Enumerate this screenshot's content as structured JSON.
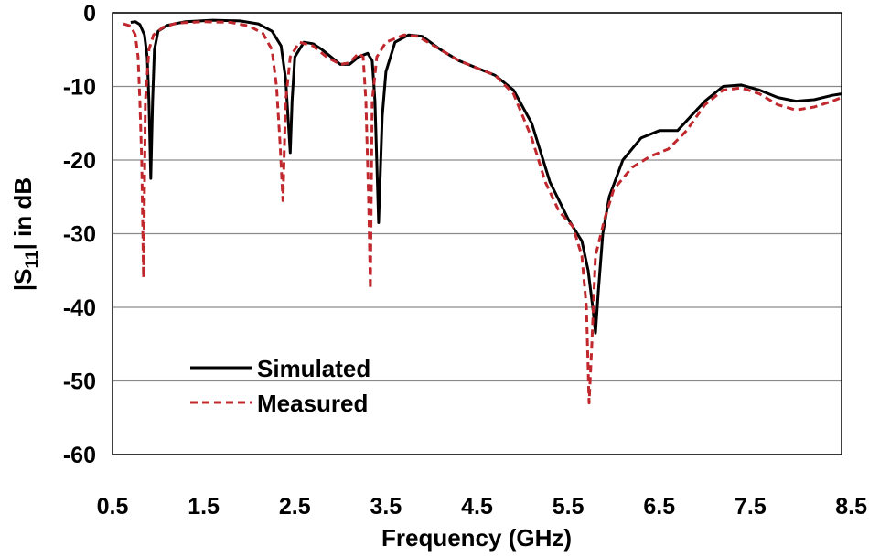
{
  "chart_data": {
    "type": "line",
    "title": "",
    "xlabel": "Frequency (GHz)",
    "ylabel_prefix": "|S",
    "ylabel_subscript": "11",
    "ylabel_suffix": "| in dB",
    "xlim": [
      0.5,
      8.5
    ],
    "ylim": [
      -60,
      0
    ],
    "xticks": [
      "0.5",
      "1.5",
      "2.5",
      "3.5",
      "4.5",
      "5.5",
      "6.5",
      "7.5",
      "8.5"
    ],
    "yticks": [
      "0",
      "-10",
      "-20",
      "-30",
      "-40",
      "-50",
      "-60"
    ],
    "grid": "horizontal",
    "legend_position": "bottom-left",
    "series": [
      {
        "name": "Simulated",
        "color": "#000000",
        "style": "solid",
        "points": [
          [
            0.7,
            -1.3
          ],
          [
            0.75,
            -1.2
          ],
          [
            0.8,
            -1.6
          ],
          [
            0.85,
            -3
          ],
          [
            0.88,
            -6
          ],
          [
            0.9,
            -12
          ],
          [
            0.92,
            -22.5
          ],
          [
            0.94,
            -12
          ],
          [
            0.96,
            -5
          ],
          [
            1.0,
            -2.5
          ],
          [
            1.1,
            -1.7
          ],
          [
            1.3,
            -1.2
          ],
          [
            1.6,
            -1.0
          ],
          [
            1.9,
            -1.1
          ],
          [
            2.1,
            -1.5
          ],
          [
            2.25,
            -2.5
          ],
          [
            2.35,
            -4.5
          ],
          [
            2.4,
            -9
          ],
          [
            2.43,
            -15
          ],
          [
            2.45,
            -19
          ],
          [
            2.47,
            -12
          ],
          [
            2.5,
            -6
          ],
          [
            2.6,
            -4
          ],
          [
            2.7,
            -4.2
          ],
          [
            2.8,
            -5
          ],
          [
            3.0,
            -7
          ],
          [
            3.1,
            -7
          ],
          [
            3.2,
            -6
          ],
          [
            3.3,
            -5.5
          ],
          [
            3.35,
            -6.5
          ],
          [
            3.38,
            -12
          ],
          [
            3.42,
            -28.5
          ],
          [
            3.46,
            -14
          ],
          [
            3.5,
            -8
          ],
          [
            3.6,
            -4
          ],
          [
            3.75,
            -3
          ],
          [
            3.9,
            -3.2
          ],
          [
            4.1,
            -5
          ],
          [
            4.3,
            -6.5
          ],
          [
            4.5,
            -7.5
          ],
          [
            4.7,
            -8.5
          ],
          [
            4.9,
            -10.5
          ],
          [
            5.1,
            -15
          ],
          [
            5.3,
            -23
          ],
          [
            5.5,
            -28
          ],
          [
            5.65,
            -31
          ],
          [
            5.72,
            -35
          ],
          [
            5.77,
            -40
          ],
          [
            5.8,
            -43.5
          ],
          [
            5.83,
            -38
          ],
          [
            5.88,
            -30
          ],
          [
            5.95,
            -25
          ],
          [
            6.1,
            -20
          ],
          [
            6.3,
            -17
          ],
          [
            6.5,
            -16
          ],
          [
            6.7,
            -16
          ],
          [
            6.85,
            -14
          ],
          [
            7.0,
            -12
          ],
          [
            7.2,
            -10
          ],
          [
            7.4,
            -9.8
          ],
          [
            7.6,
            -10.5
          ],
          [
            7.8,
            -11.5
          ],
          [
            8.0,
            -12
          ],
          [
            8.2,
            -11.8
          ],
          [
            8.4,
            -11.2
          ],
          [
            8.5,
            -11
          ]
        ]
      },
      {
        "name": "Measured",
        "color": "#c0282d",
        "style": "dashed",
        "points": [
          [
            0.62,
            -1.5
          ],
          [
            0.7,
            -1.8
          ],
          [
            0.75,
            -3
          ],
          [
            0.78,
            -6
          ],
          [
            0.8,
            -12
          ],
          [
            0.82,
            -20
          ],
          [
            0.84,
            -36
          ],
          [
            0.86,
            -12
          ],
          [
            0.9,
            -5
          ],
          [
            0.95,
            -3
          ],
          [
            1.05,
            -2
          ],
          [
            1.2,
            -1.4
          ],
          [
            1.5,
            -1.2
          ],
          [
            1.8,
            -1.3
          ],
          [
            2.0,
            -1.8
          ],
          [
            2.15,
            -2.8
          ],
          [
            2.25,
            -5
          ],
          [
            2.3,
            -10
          ],
          [
            2.34,
            -18
          ],
          [
            2.37,
            -25.5
          ],
          [
            2.4,
            -12
          ],
          [
            2.45,
            -6
          ],
          [
            2.55,
            -4
          ],
          [
            2.7,
            -4.5
          ],
          [
            2.85,
            -6
          ],
          [
            3.0,
            -7
          ],
          [
            3.1,
            -6.8
          ],
          [
            3.2,
            -5.5
          ],
          [
            3.25,
            -6
          ],
          [
            3.28,
            -12
          ],
          [
            3.31,
            -25
          ],
          [
            3.33,
            -37.5
          ],
          [
            3.35,
            -12
          ],
          [
            3.4,
            -6
          ],
          [
            3.5,
            -4
          ],
          [
            3.7,
            -3
          ],
          [
            3.85,
            -3.2
          ],
          [
            4.1,
            -5
          ],
          [
            4.3,
            -6.5
          ],
          [
            4.5,
            -7.5
          ],
          [
            4.7,
            -8.5
          ],
          [
            4.9,
            -11
          ],
          [
            5.1,
            -17
          ],
          [
            5.25,
            -23
          ],
          [
            5.4,
            -27
          ],
          [
            5.55,
            -29
          ],
          [
            5.65,
            -33
          ],
          [
            5.7,
            -40
          ],
          [
            5.73,
            -53
          ],
          [
            5.76,
            -45
          ],
          [
            5.8,
            -33
          ],
          [
            5.9,
            -28
          ],
          [
            6.0,
            -24
          ],
          [
            6.2,
            -21
          ],
          [
            6.4,
            -19.5
          ],
          [
            6.6,
            -18.5
          ],
          [
            6.8,
            -16
          ],
          [
            7.0,
            -12.5
          ],
          [
            7.2,
            -10.5
          ],
          [
            7.4,
            -10.2
          ],
          [
            7.6,
            -11
          ],
          [
            7.8,
            -12.5
          ],
          [
            8.0,
            -13.2
          ],
          [
            8.2,
            -12.8
          ],
          [
            8.4,
            -12
          ],
          [
            8.5,
            -11.5
          ]
        ]
      }
    ]
  }
}
